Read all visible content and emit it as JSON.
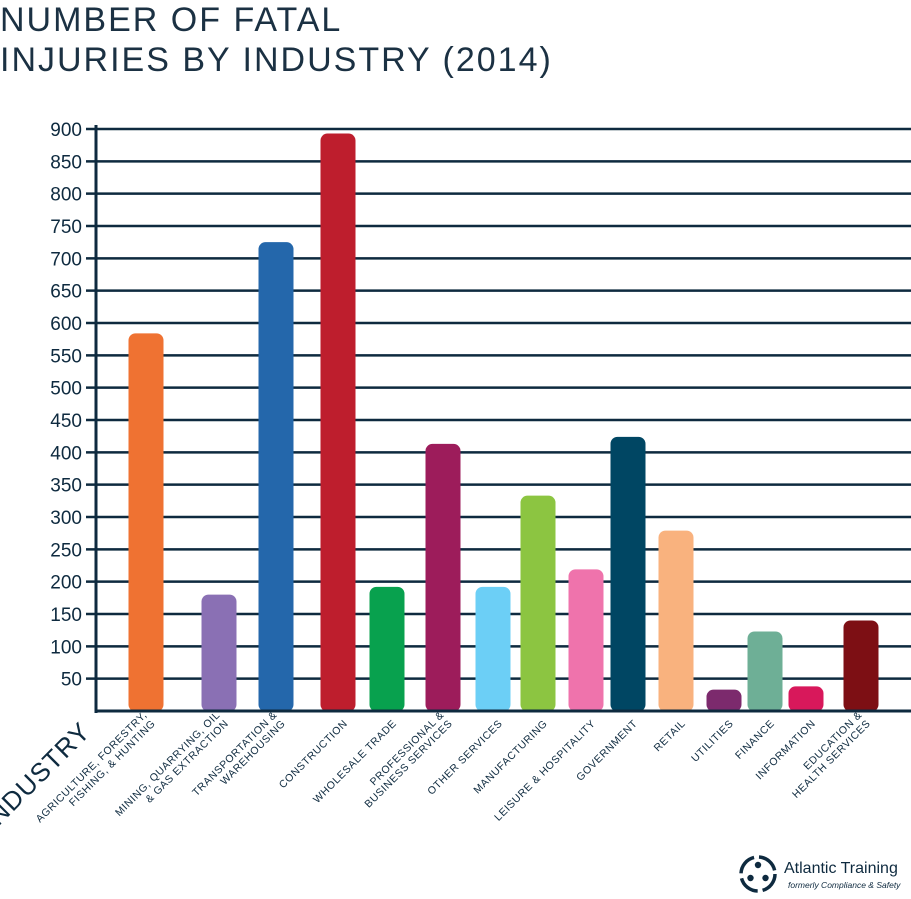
{
  "chart_data": {
    "type": "bar",
    "title_lines": [
      "NUMBER OF FATAL",
      "INJURIES BY INDUSTRY (2014)"
    ],
    "xlabel": "INDUSTRY",
    "ylabel": "",
    "ylim": [
      0,
      900
    ],
    "yticks": [
      50,
      100,
      150,
      200,
      250,
      300,
      350,
      400,
      450,
      500,
      550,
      600,
      650,
      700,
      750,
      800,
      850,
      900
    ],
    "grid": true,
    "categories": [
      [
        "AGRICULTURE, FORESTRY,",
        "FISHING, & HUNTING"
      ],
      [
        "MINING, QUARRYING, OIL",
        "& GAS EXTRACTION"
      ],
      [
        "TRANSPORTATION &",
        "WAREHOUSING"
      ],
      [
        "CONSTRUCTION"
      ],
      [
        "WHOLESALE TRADE"
      ],
      [
        "PROFESSIONAL &",
        "BUSINESS SERVICES"
      ],
      [
        "OTHER SERVICES"
      ],
      [
        "MANUFACTURING"
      ],
      [
        "LEISURE & HOSPITALITY"
      ],
      [
        "GOVERNMENT"
      ],
      [
        "RETAIL"
      ],
      [
        "UTILITIES"
      ],
      [
        "FINANCE"
      ],
      [
        "INFORMATION"
      ],
      [
        "EDUCATION &",
        "HEALTH SERVICES"
      ]
    ],
    "values": [
      584,
      180,
      725,
      893,
      192,
      413,
      192,
      333,
      219,
      424,
      279,
      33,
      123,
      38,
      140
    ],
    "colors": [
      "#ef7232",
      "#8a70b4",
      "#2467ab",
      "#be1e2d",
      "#08a14e",
      "#9d1c5b",
      "#6ccff6",
      "#8cc541",
      "#ef73ac",
      "#004663",
      "#f9b27e",
      "#7c2a6d",
      "#6eaf96",
      "#d8185b",
      "#7d0f14"
    ]
  },
  "logo": {
    "name": "Atlantic Training",
    "tagline": "formerly Compliance & Safety",
    "icon": "atlantic-training-logo-icon"
  }
}
